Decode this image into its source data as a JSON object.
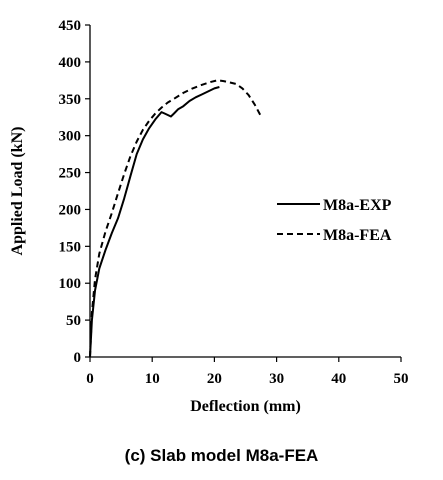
{
  "chart_data": {
    "type": "line",
    "title": "",
    "xlabel": "Deflection (mm)",
    "ylabel": "Applied Load (kN)",
    "xlim": [
      0,
      50
    ],
    "ylim": [
      0,
      450
    ],
    "xticks": [
      0,
      10,
      20,
      30,
      40,
      50
    ],
    "yticks": [
      0,
      50,
      100,
      150,
      200,
      250,
      300,
      350,
      400,
      450
    ],
    "grid": false,
    "legend_position": "right",
    "series": [
      {
        "name": "M8a-EXP",
        "style": "solid",
        "color": "#000000",
        "x": [
          0,
          0.3,
          0.8,
          1.5,
          2.5,
          3.5,
          4.5,
          5.5,
          6.5,
          7.5,
          8.5,
          9.5,
          10.5,
          11.5,
          12.0,
          12.5,
          13.0,
          13.5,
          14.2,
          15.0,
          16.0,
          17.0,
          18.0,
          19.0,
          20.0,
          20.8
        ],
        "y": [
          0,
          50,
          90,
          120,
          145,
          168,
          188,
          215,
          245,
          275,
          295,
          310,
          322,
          332,
          330,
          328,
          326,
          330,
          336,
          340,
          347,
          352,
          356,
          360,
          364,
          366
        ]
      },
      {
        "name": "M8a-FEA",
        "style": "dashed",
        "color": "#000000",
        "x": [
          0,
          0.3,
          0.8,
          1.5,
          2.5,
          3.5,
          4.5,
          5.5,
          6.5,
          7.5,
          8.5,
          9.5,
          10.5,
          11.5,
          12.5,
          13.5,
          15.0,
          16.5,
          18.0,
          19.5,
          20.5,
          21.5,
          22.5,
          23.5,
          24.5,
          25.5,
          26.5,
          27.5
        ],
        "y": [
          0,
          60,
          105,
          140,
          170,
          195,
          222,
          248,
          272,
          292,
          308,
          320,
          330,
          338,
          345,
          350,
          358,
          364,
          369,
          373,
          375,
          374,
          372,
          370,
          364,
          355,
          342,
          326
        ]
      }
    ]
  },
  "caption": "(c) Slab model M8a-FEA"
}
